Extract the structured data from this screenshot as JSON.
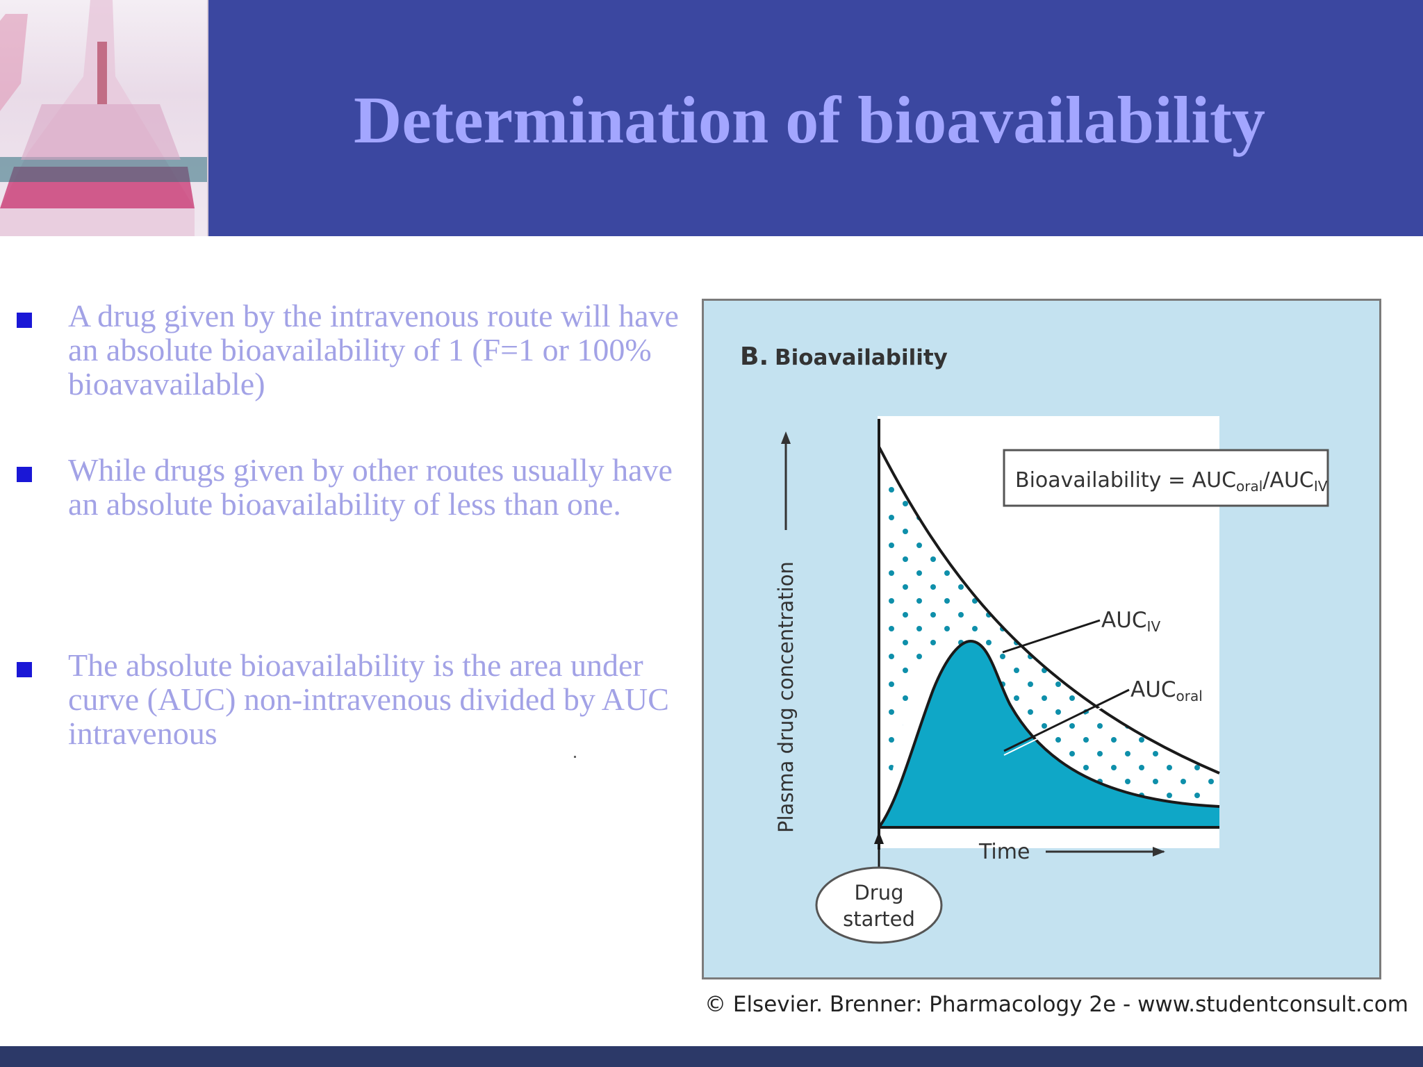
{
  "slide": {
    "title": "Determination of bioavailability",
    "bullets": [
      {
        "text": "A drug given by the intravenous route will have an absolute bioavailability of 1 (F=1 or 100% bioavavailable)"
      },
      {
        "text": " While drugs given by other routes usually have an absolute bioavailability of less than one."
      },
      {
        "text": "The absolute bioavailability is the area under curve (AUC) non-intravenous divided by AUC intravenous"
      }
    ]
  },
  "figure": {
    "panel_letter": "B.",
    "panel_title": "Bioavailability",
    "ylabel": "Plasma drug concentration",
    "xlabel": "Time",
    "formula_prefix": "Bioavailability = AUC",
    "formula_sub1": "oral",
    "formula_mid": "/AUC",
    "formula_sub2": "IV",
    "auc_iv_label": "AUC",
    "auc_iv_sub": "IV",
    "auc_oral_label": "AUC",
    "auc_oral_sub": "oral",
    "drug_started_line1": "Drug",
    "drug_started_line2": "started",
    "colors": {
      "panel_bg": "#c4e2f0",
      "oral_fill": "#0fa7c7",
      "dots": "#0e8faa"
    }
  },
  "credit": "© Elsevier. Brenner: Pharmacology 2e - www.studentconsult.com",
  "colors": {
    "header": "#3b47a0",
    "title": "#a3a6ff",
    "bullet_text": "#a2a2e6",
    "bullet_marker": "#1a17d6"
  }
}
